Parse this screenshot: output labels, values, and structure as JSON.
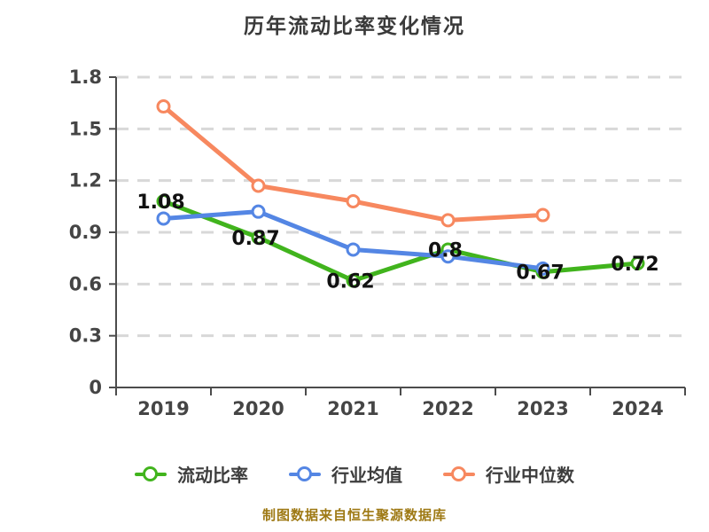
{
  "title": "历年流动比率变化情况",
  "footer_note": "制图数据来自恒生聚源数据库",
  "colors": {
    "series_green": "#41b41d",
    "series_blue": "#5486e4",
    "series_orange": "#f7885f",
    "grid": "#d8d8d8",
    "axis": "#4c4c4c",
    "tick_label": "#454545",
    "data_label": "#111111",
    "title_text": "#3a3a3a",
    "legend_text": "#3d3d3d",
    "footer_text": "#9e7914",
    "point_fill": "#ffffff"
  },
  "chart_data": {
    "type": "line",
    "title": "历年流动比率变化情况",
    "categories": [
      "2019",
      "2020",
      "2021",
      "2022",
      "2023",
      "2024"
    ],
    "series": [
      {
        "name": "流动比率",
        "color_key": "series_green",
        "values": [
          1.08,
          0.87,
          0.62,
          0.8,
          0.67,
          0.72
        ],
        "point_labels": [
          "1.08",
          "0.87",
          "0.62",
          "0.8",
          "0.67",
          "0.72"
        ]
      },
      {
        "name": "行业均值",
        "color_key": "series_blue",
        "values": [
          0.98,
          1.02,
          0.8,
          0.76,
          0.69,
          null
        ],
        "point_labels": []
      },
      {
        "name": "行业中位数",
        "color_key": "series_orange",
        "values": [
          1.63,
          1.17,
          1.08,
          0.97,
          1.0,
          null
        ],
        "point_labels": []
      }
    ],
    "xlabel": "",
    "ylabel": "",
    "ylim": [
      0,
      1.8
    ],
    "yticks": [
      "0",
      "0.3",
      "0.6",
      "0.9",
      "1.2",
      "1.5",
      "1.8"
    ],
    "grid": "horizontal-dashed",
    "legend_position": "bottom"
  }
}
